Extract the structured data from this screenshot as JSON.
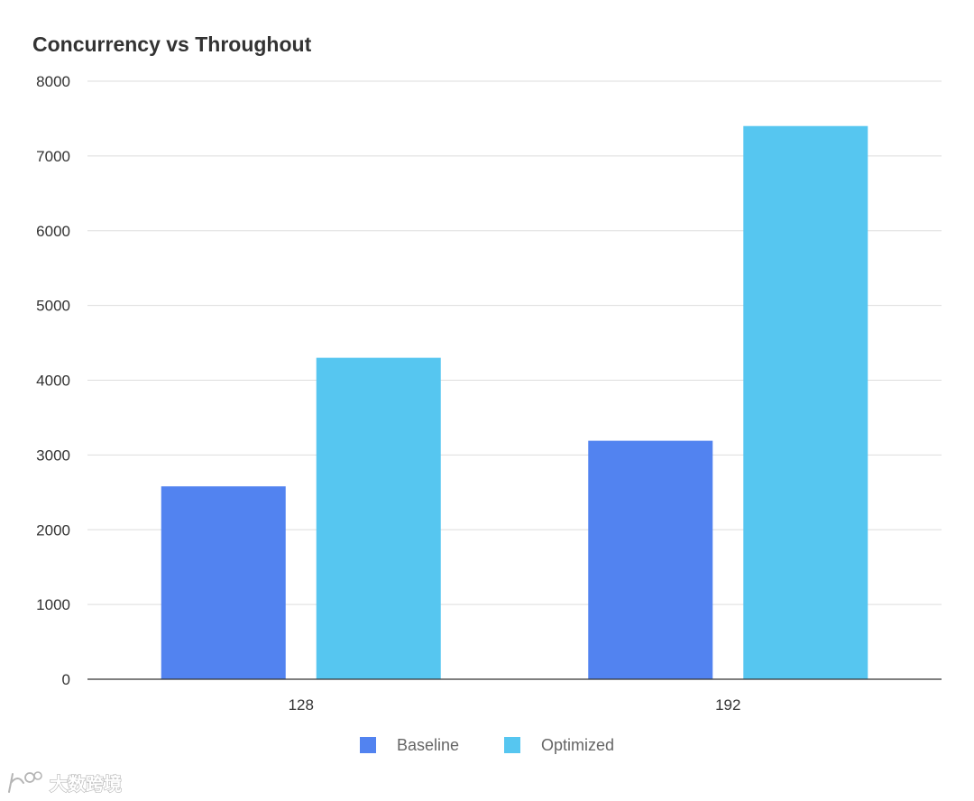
{
  "chart_data": {
    "type": "bar",
    "title": "Concurrency vs Throughout",
    "xlabel": "",
    "ylabel": "",
    "categories": [
      "128",
      "192"
    ],
    "series": [
      {
        "name": "Baseline",
        "values": [
          2580,
          3190
        ],
        "color": "#5283F0"
      },
      {
        "name": "Optimized",
        "values": [
          4300,
          7400
        ],
        "color": "#56C6F0"
      }
    ],
    "ylim": [
      0,
      8000
    ],
    "yticks": [
      0,
      1000,
      2000,
      3000,
      4000,
      5000,
      6000,
      7000,
      8000
    ],
    "grid": true,
    "legend_position": "bottom"
  },
  "watermark": {
    "text": "大数跨境",
    "logo_icon": "ibd-logo-icon"
  }
}
